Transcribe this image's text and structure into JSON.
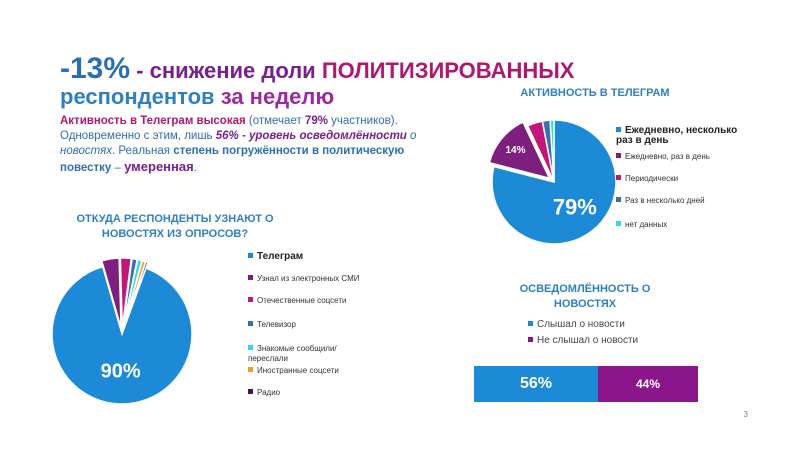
{
  "title": {
    "pct": "-13%",
    "line1_mid": " - снижение доли ",
    "line1_emph": "ПОЛИТИЗИРОВАННЫХ",
    "line2_a": "респондентов ",
    "line2_b": "за неделю"
  },
  "paragraph": {
    "s1": "Активность в Телеграм высокая",
    "s2": " (отмечает ",
    "s3": "79%",
    "s4": " участников). Одновременно с этим, лишь ",
    "s5": "56% - уровень осведомлённости",
    "s6": " о новостях",
    "s7": ". Реальная ",
    "s8": "степень погружённости в политическую повестку",
    "s9": " – ",
    "s10": "умеренная",
    "s11": "."
  },
  "page_number": "3",
  "colors": {
    "blue": "#1c8ad6",
    "purple": "#7e1f7e",
    "magenta": "#c2177a",
    "darkblue": "#3a6fa8",
    "cyan": "#30d6f0",
    "orange": "#e7a42a",
    "darkpurple": "#4a1357",
    "title_purple": "#7a1f8e"
  },
  "chart_data": [
    {
      "type": "pie",
      "title": "ОТКУДА РЕСПОНДЕНТЫ УЗНАЮТ О НОВОСТЯХ ИЗ ОПРОСОВ?",
      "legend_placement": "right",
      "slices": [
        {
          "name": "Телеграм",
          "value": 90,
          "label": "90%",
          "color": "#1c8ad6"
        },
        {
          "name": "Узнал из электронных СМИ",
          "value": 4,
          "label": "",
          "color": "#7e1f7e"
        },
        {
          "name": "Отечественные соцсети",
          "value": 2.5,
          "label": "",
          "color": "#c2177a"
        },
        {
          "name": "Телевизор",
          "value": 1.2,
          "label": "",
          "color": "#3a6fa8"
        },
        {
          "name": "Знакомые сообщили/переслали",
          "value": 1,
          "label": "",
          "color": "#30d6f0"
        },
        {
          "name": "Иностранные соцсети",
          "value": 0.8,
          "label": "",
          "color": "#e7a42a"
        },
        {
          "name": "Радио",
          "value": 0.5,
          "label": "",
          "color": "#4a1357"
        }
      ]
    },
    {
      "type": "pie",
      "title": "АКТИВНОСТЬ В ТЕЛЕГРАМ",
      "legend_placement": "right",
      "slices": [
        {
          "name": "Ежедневно, несколько раз в день",
          "value": 79,
          "label": "79%",
          "color": "#1c8ad6"
        },
        {
          "name": "Ежедневно, раз в день",
          "value": 14,
          "label": "14%",
          "color": "#7e1f7e"
        },
        {
          "name": "Периодически",
          "value": 4,
          "label": "",
          "color": "#c2177a"
        },
        {
          "name": "Раз в несколько дней",
          "value": 2,
          "label": "",
          "color": "#3a6fa8"
        },
        {
          "name": "нет данных",
          "value": 1,
          "label": "",
          "color": "#30d6f0"
        }
      ]
    },
    {
      "type": "bar",
      "orientation": "horizontal-stacked",
      "title": "ОСВЕДОМЛЁННОСТЬ О НОВОСТЯХ",
      "legend_placement": "top",
      "series": [
        {
          "name": "Слышал о новости",
          "value": 56,
          "label": "56%",
          "color": "#1c8ad6"
        },
        {
          "name": "Не слышал о новости",
          "value": 44,
          "label": "44%",
          "color": "#8b168b"
        }
      ]
    }
  ]
}
